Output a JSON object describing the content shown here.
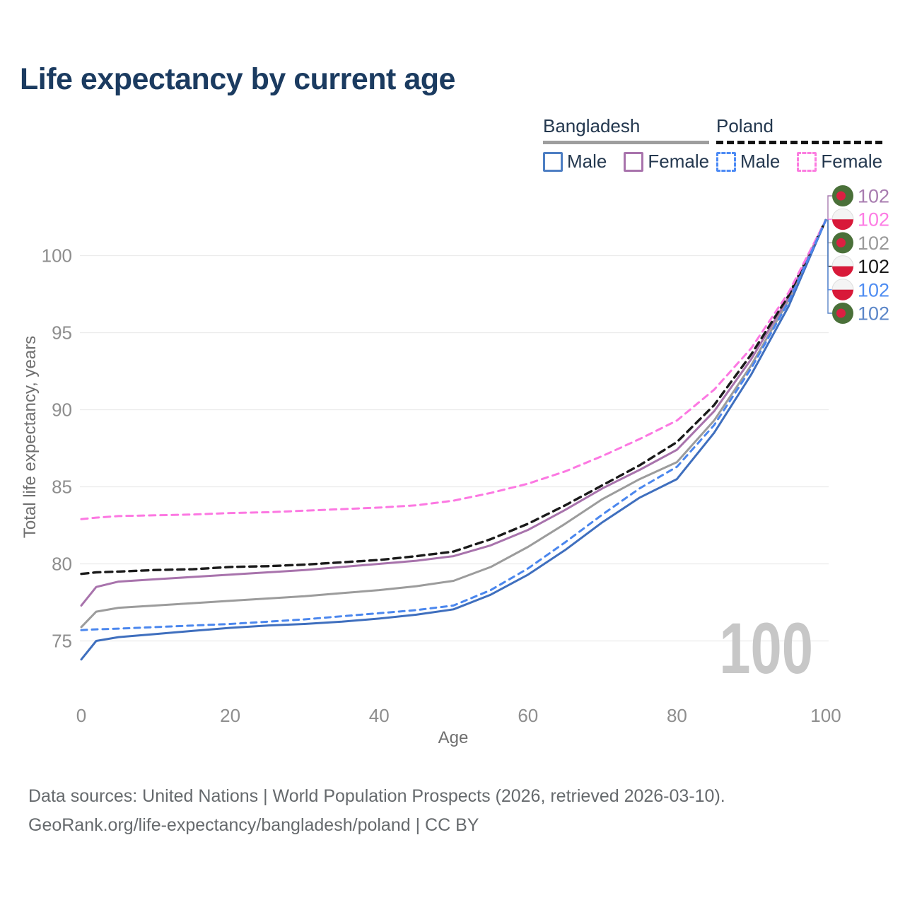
{
  "title": "Life expectancy by current age",
  "legend": {
    "groups": [
      {
        "name": "Bangladesh",
        "line_style": "solid",
        "underline_color": "#9e9e9e",
        "items": [
          {
            "label": "Male",
            "color": "#4d7ec3"
          },
          {
            "label": "Female",
            "color": "#a873ac"
          }
        ]
      },
      {
        "name": "Poland",
        "line_style": "dashed",
        "underline_color": "#141414",
        "items": [
          {
            "label": "Male",
            "color": "#4d8bf5"
          },
          {
            "label": "Female",
            "color": "#fc7ce0"
          }
        ]
      }
    ]
  },
  "chart_data": {
    "type": "line",
    "title": "Life expectancy by current age",
    "xlabel": "Age",
    "ylabel": "Total life expectancy, years",
    "xlim": [
      0,
      100
    ],
    "ylim": [
      73.5,
      102.5
    ],
    "x_ticks": [
      0,
      20,
      40,
      60,
      80,
      100
    ],
    "y_ticks": [
      75,
      80,
      85,
      90,
      95,
      100
    ],
    "grid": "horizontal",
    "legend_position": "top-right",
    "watermark": "100",
    "ages": [
      0,
      2,
      5,
      10,
      15,
      20,
      25,
      30,
      35,
      40,
      45,
      50,
      55,
      60,
      65,
      70,
      75,
      80,
      85,
      90,
      95,
      100
    ],
    "series": [
      {
        "name": "Bangladesh Total",
        "country": "Bangladesh",
        "sex": "Both",
        "color": "#9c9c9c",
        "dash": "solid",
        "values": [
          75.9,
          76.9,
          77.15,
          77.3,
          77.45,
          77.6,
          77.75,
          77.9,
          78.1,
          78.3,
          78.55,
          78.9,
          79.8,
          81.1,
          82.6,
          84.2,
          85.5,
          86.6,
          89.3,
          92.9,
          97.1,
          102.3
        ]
      },
      {
        "name": "Bangladesh Female",
        "country": "Bangladesh",
        "sex": "Female",
        "color": "#a873ac",
        "dash": "solid",
        "values": [
          77.3,
          78.5,
          78.85,
          79.0,
          79.15,
          79.3,
          79.45,
          79.6,
          79.8,
          80.0,
          80.2,
          80.5,
          81.2,
          82.2,
          83.5,
          84.9,
          86.1,
          87.4,
          89.9,
          93.3,
          97.3,
          102.3
        ]
      },
      {
        "name": "Bangladesh Male",
        "country": "Bangladesh",
        "sex": "Male",
        "color": "#3f6fbe",
        "dash": "solid",
        "values": [
          73.8,
          75.0,
          75.25,
          75.45,
          75.65,
          75.85,
          76.0,
          76.1,
          76.25,
          76.45,
          76.7,
          77.05,
          78.0,
          79.3,
          80.9,
          82.7,
          84.3,
          85.5,
          88.5,
          92.3,
          96.7,
          102.3
        ]
      },
      {
        "name": "Poland Total",
        "country": "Poland",
        "sex": "Both",
        "color": "#1a1a1a",
        "dash": "dashed",
        "values": [
          79.35,
          79.45,
          79.5,
          79.6,
          79.65,
          79.8,
          79.85,
          79.95,
          80.1,
          80.25,
          80.5,
          80.8,
          81.6,
          82.6,
          83.8,
          85.1,
          86.4,
          87.9,
          90.3,
          93.6,
          97.4,
          102.3
        ]
      },
      {
        "name": "Poland Female",
        "country": "Poland",
        "sex": "Female",
        "color": "#fc78e2",
        "dash": "dashed",
        "values": [
          82.9,
          83.0,
          83.1,
          83.15,
          83.2,
          83.3,
          83.35,
          83.45,
          83.55,
          83.65,
          83.8,
          84.1,
          84.6,
          85.2,
          86.0,
          87.0,
          88.1,
          89.3,
          91.3,
          94.0,
          97.6,
          102.3
        ]
      },
      {
        "name": "Poland Male",
        "country": "Poland",
        "sex": "Male",
        "color": "#4b87ee",
        "dash": "dashed",
        "values": [
          75.7,
          75.75,
          75.8,
          75.9,
          76.0,
          76.1,
          76.25,
          76.4,
          76.6,
          76.8,
          77.0,
          77.3,
          78.3,
          79.7,
          81.4,
          83.2,
          84.9,
          86.3,
          89.0,
          92.7,
          97.0,
          102.3
        ]
      }
    ],
    "end_labels": [
      {
        "flag": "bangladesh",
        "label": "102",
        "color": "#a87cb0",
        "series": "Bangladesh Female"
      },
      {
        "flag": "poland",
        "label": "102",
        "color": "#fd7ce4",
        "series": "Poland Female"
      },
      {
        "flag": "bangladesh",
        "label": "102",
        "color": "#9a9a9a",
        "series": "Bangladesh Total"
      },
      {
        "flag": "poland",
        "label": "102",
        "color": "#1a1a1a",
        "series": "Poland Total"
      },
      {
        "flag": "poland",
        "label": "102",
        "color": "#4f8df2",
        "series": "Poland Male"
      },
      {
        "flag": "bangladesh",
        "label": "102",
        "color": "#5b86c8",
        "series": "Bangladesh Male"
      }
    ],
    "flag_colors": {
      "bangladesh_green": "#4a7039",
      "bangladesh_red": "#dc1f42",
      "poland_white": "#f4f4f4",
      "poland_red": "#d81939"
    }
  },
  "footer": {
    "line1": "Data sources: United Nations | World Population Prospects (2026, retrieved 2026-03-10).",
    "line2": "GeoRank.org/life-expectancy/bangladesh/poland | CC BY"
  }
}
